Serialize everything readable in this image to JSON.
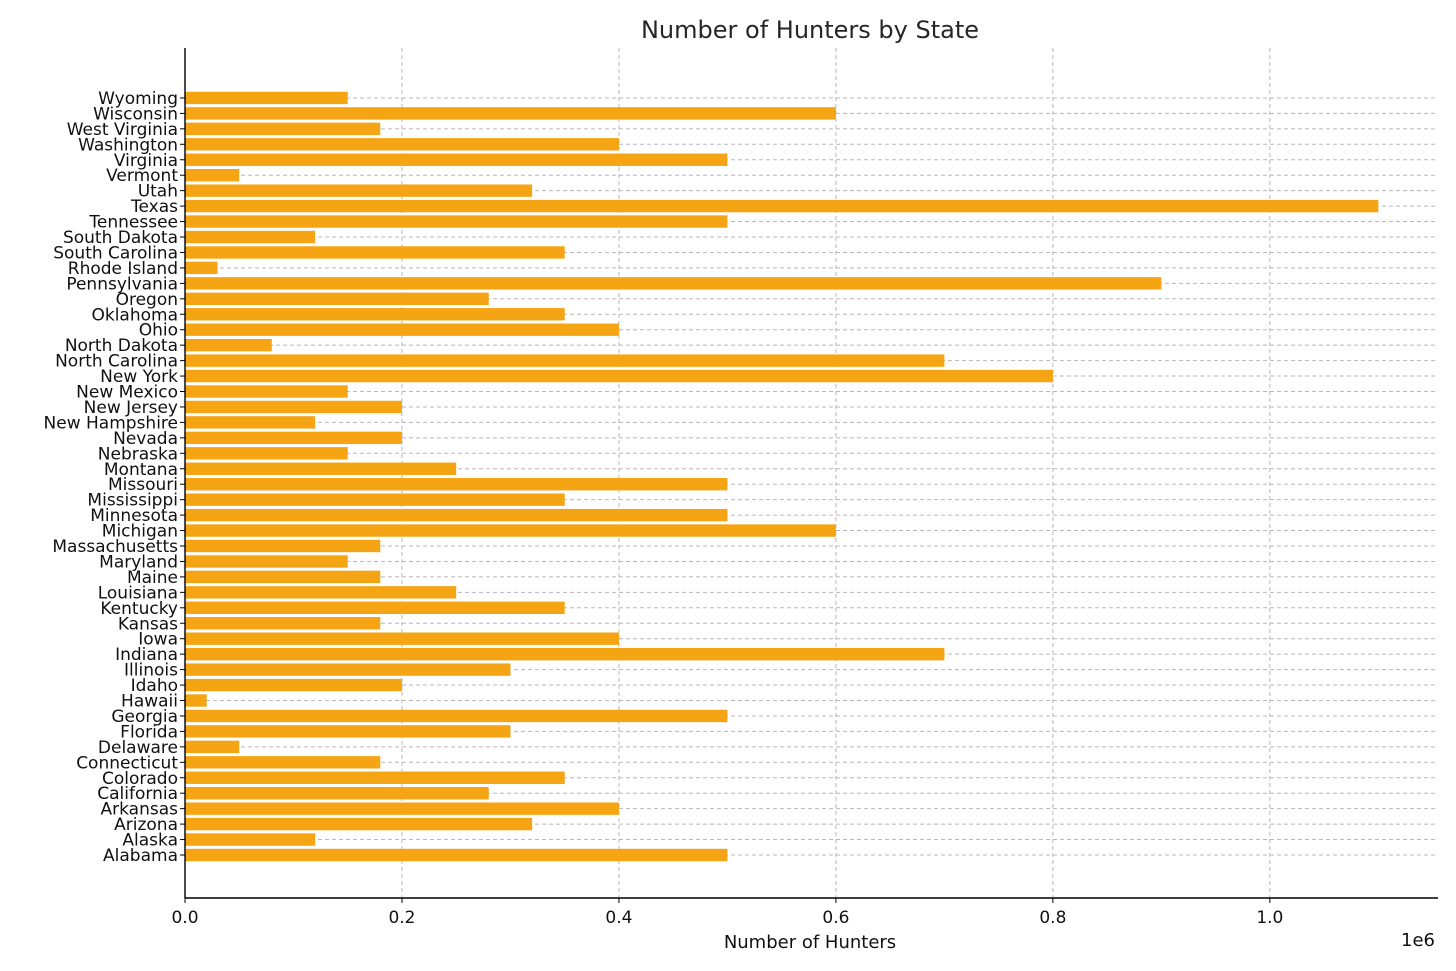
{
  "chart_data": {
    "type": "bar",
    "orientation": "horizontal",
    "title": "Number of Hunters by State",
    "xlabel": "Number of Hunters",
    "x_exponent_label": "1e6",
    "x_ticks": [
      0.0,
      0.2,
      0.4,
      0.6,
      0.8,
      1.0
    ],
    "x_tick_labels": [
      "0.0",
      "0.2",
      "0.4",
      "0.6",
      "0.8",
      "1.0"
    ],
    "xlim": [
      0,
      1.155
    ],
    "grid": true,
    "bar_color": "#f5a514",
    "categories": [
      "Alabama",
      "Alaska",
      "Arizona",
      "Arkansas",
      "California",
      "Colorado",
      "Connecticut",
      "Delaware",
      "Florida",
      "Georgia",
      "Hawaii",
      "Idaho",
      "Illinois",
      "Indiana",
      "Iowa",
      "Kansas",
      "Kentucky",
      "Louisiana",
      "Maine",
      "Maryland",
      "Massachusetts",
      "Michigan",
      "Minnesota",
      "Mississippi",
      "Missouri",
      "Montana",
      "Nebraska",
      "Nevada",
      "New Hampshire",
      "New Jersey",
      "New Mexico",
      "New York",
      "North Carolina",
      "North Dakota",
      "Ohio",
      "Oklahoma",
      "Oregon",
      "Pennsylvania",
      "Rhode Island",
      "South Carolina",
      "South Dakota",
      "Tennessee",
      "Texas",
      "Utah",
      "Vermont",
      "Virginia",
      "Washington",
      "West Virginia",
      "Wisconsin",
      "Wyoming"
    ],
    "values": [
      0.5,
      0.12,
      0.32,
      0.4,
      0.28,
      0.35,
      0.18,
      0.05,
      0.3,
      0.5,
      0.02,
      0.2,
      0.3,
      0.7,
      0.4,
      0.18,
      0.35,
      0.25,
      0.18,
      0.15,
      0.18,
      0.6,
      0.5,
      0.35,
      0.5,
      0.25,
      0.15,
      0.2,
      0.12,
      0.2,
      0.15,
      0.8,
      0.7,
      0.08,
      0.4,
      0.35,
      0.28,
      0.9,
      0.03,
      0.35,
      0.12,
      0.5,
      1.1,
      0.32,
      0.05,
      0.5,
      0.4,
      0.18,
      0.6,
      0.15
    ]
  }
}
